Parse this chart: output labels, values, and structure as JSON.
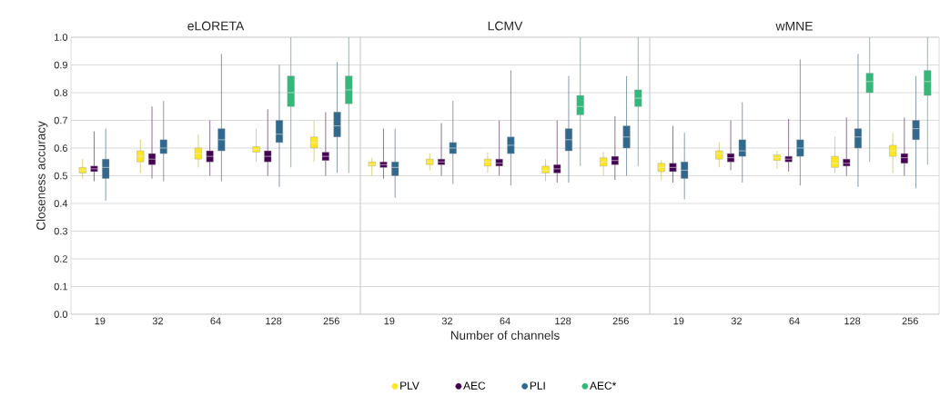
{
  "chart_data": [
    {
      "type": "box",
      "title": "eLORETA",
      "ylabel": "Closeness accuracy",
      "categories": [
        "19",
        "32",
        "64",
        "128",
        "256"
      ],
      "ylim": [
        0,
        1
      ],
      "yticks": [
        {
          "value": 0,
          "label": "0.0"
        },
        0.1,
        0.2,
        0.3,
        0.4,
        0.5,
        0.6,
        0.7,
        0.8,
        0.9,
        {
          "value": 1,
          "label": "1.0"
        }
      ],
      "grid": "y",
      "series": [
        {
          "color": "#fde725",
          "boxes": [
            {
              "low": 0.49,
              "q1": 0.51,
              "median": 0.52,
              "q3": 0.53,
              "high": 0.56
            },
            {
              "low": 0.51,
              "q1": 0.55,
              "median": 0.57,
              "q3": 0.59,
              "high": 0.63
            },
            {
              "low": 0.53,
              "q1": 0.56,
              "median": 0.58,
              "q3": 0.6,
              "high": 0.65
            },
            {
              "low": 0.55,
              "q1": 0.585,
              "median": 0.595,
              "q3": 0.605,
              "high": 0.67
            },
            {
              "low": 0.55,
              "q1": 0.6,
              "median": 0.62,
              "q3": 0.64,
              "high": 0.7
            }
          ]
        },
        {
          "color": "#440154",
          "boxes": [
            {
              "low": 0.48,
              "q1": 0.515,
              "median": 0.525,
              "q3": 0.535,
              "high": 0.66
            },
            {
              "low": 0.49,
              "q1": 0.54,
              "median": 0.56,
              "q3": 0.58,
              "high": 0.75
            },
            {
              "low": 0.5,
              "q1": 0.55,
              "median": 0.57,
              "q3": 0.59,
              "high": 0.7
            },
            {
              "low": 0.5,
              "q1": 0.55,
              "median": 0.57,
              "q3": 0.59,
              "high": 0.74
            },
            {
              "low": 0.5,
              "q1": 0.555,
              "median": 0.57,
              "q3": 0.585,
              "high": 0.73
            }
          ]
        },
        {
          "color": "#31688e",
          "boxes": [
            {
              "low": 0.41,
              "q1": 0.49,
              "median": 0.53,
              "q3": 0.56,
              "high": 0.67
            },
            {
              "low": 0.48,
              "q1": 0.58,
              "median": 0.6,
              "q3": 0.63,
              "high": 0.77
            },
            {
              "low": 0.48,
              "q1": 0.59,
              "median": 0.63,
              "q3": 0.67,
              "high": 0.94
            },
            {
              "low": 0.46,
              "q1": 0.62,
              "median": 0.65,
              "q3": 0.7,
              "high": 0.9
            },
            {
              "low": 0.51,
              "q1": 0.64,
              "median": 0.68,
              "q3": 0.73,
              "high": 0.91
            }
          ]
        },
        {
          "color": "#35b779",
          "boxes": [
            null,
            null,
            null,
            {
              "low": 0.53,
              "q1": 0.75,
              "median": 0.8,
              "q3": 0.86,
              "high": 1.0
            },
            {
              "low": 0.51,
              "q1": 0.76,
              "median": 0.81,
              "q3": 0.86,
              "high": 1.0
            }
          ]
        }
      ]
    },
    {
      "type": "box",
      "title": "LCMV",
      "xlabel": "Number of channels",
      "categories": [
        "19",
        "32",
        "64",
        "128",
        "256"
      ],
      "ylim": [
        0,
        1
      ],
      "yticks": [
        0,
        0.1,
        0.2,
        0.3,
        0.4,
        0.5,
        0.6,
        0.7,
        0.8,
        0.9,
        1
      ],
      "grid": "y",
      "tick_labels": "x",
      "legend": "bottom",
      "series": [
        {
          "name": "PLV",
          "color": "#fde725",
          "boxes": [
            {
              "low": 0.5,
              "q1": 0.535,
              "median": 0.54,
              "q3": 0.55,
              "high": 0.565
            },
            {
              "low": 0.52,
              "q1": 0.54,
              "median": 0.55,
              "q3": 0.56,
              "high": 0.58
            },
            {
              "low": 0.51,
              "q1": 0.535,
              "median": 0.55,
              "q3": 0.56,
              "high": 0.585
            },
            {
              "low": 0.48,
              "q1": 0.51,
              "median": 0.52,
              "q3": 0.535,
              "high": 0.56
            },
            {
              "low": 0.5,
              "q1": 0.535,
              "median": 0.55,
              "q3": 0.565,
              "high": 0.585
            }
          ]
        },
        {
          "name": "AEC",
          "color": "#440154",
          "boxes": [
            {
              "low": 0.49,
              "q1": 0.53,
              "median": 0.54,
              "q3": 0.55,
              "high": 0.67
            },
            {
              "low": 0.5,
              "q1": 0.54,
              "median": 0.55,
              "q3": 0.56,
              "high": 0.69
            },
            {
              "low": 0.5,
              "q1": 0.535,
              "median": 0.545,
              "q3": 0.56,
              "high": 0.7
            },
            {
              "low": 0.475,
              "q1": 0.51,
              "median": 0.525,
              "q3": 0.54,
              "high": 0.7
            },
            {
              "low": 0.485,
              "q1": 0.54,
              "median": 0.555,
              "q3": 0.57,
              "high": 0.715
            }
          ]
        },
        {
          "name": "PLI",
          "color": "#31688e",
          "boxes": [
            {
              "low": 0.42,
              "q1": 0.5,
              "median": 0.53,
              "q3": 0.55,
              "high": 0.67
            },
            {
              "low": 0.47,
              "q1": 0.58,
              "median": 0.6,
              "q3": 0.62,
              "high": 0.77
            },
            {
              "low": 0.465,
              "q1": 0.58,
              "median": 0.61,
              "q3": 0.64,
              "high": 0.88
            },
            {
              "low": 0.475,
              "q1": 0.59,
              "median": 0.63,
              "q3": 0.67,
              "high": 0.86
            },
            {
              "low": 0.5,
              "q1": 0.6,
              "median": 0.64,
              "q3": 0.68,
              "high": 0.86
            }
          ]
        },
        {
          "name": "AEC*",
          "color": "#35b779",
          "boxes": [
            null,
            null,
            null,
            {
              "low": 0.535,
              "q1": 0.72,
              "median": 0.75,
              "q3": 0.79,
              "high": 1.0
            },
            {
              "low": 0.535,
              "q1": 0.75,
              "median": 0.78,
              "q3": 0.81,
              "high": 1.0
            }
          ]
        }
      ]
    },
    {
      "type": "box",
      "title": "wMNE",
      "categories": [
        "19",
        "32",
        "64",
        "128",
        "256"
      ],
      "ylim": [
        0,
        1
      ],
      "yticks": [
        0,
        0.1,
        0.2,
        0.3,
        0.4,
        0.5,
        0.6,
        0.7,
        0.8,
        0.9,
        1
      ],
      "grid": "y",
      "tick_labels": "x",
      "series": [
        {
          "color": "#fde725",
          "boxes": [
            {
              "low": 0.485,
              "q1": 0.515,
              "median": 0.53,
              "q3": 0.545,
              "high": 0.555
            },
            {
              "low": 0.53,
              "q1": 0.56,
              "median": 0.58,
              "q3": 0.59,
              "high": 0.62
            },
            {
              "low": 0.525,
              "q1": 0.555,
              "median": 0.565,
              "q3": 0.575,
              "high": 0.59
            },
            {
              "low": 0.51,
              "q1": 0.53,
              "median": 0.545,
              "q3": 0.57,
              "high": 0.64
            },
            {
              "low": 0.51,
              "q1": 0.57,
              "median": 0.59,
              "q3": 0.61,
              "high": 0.655
            }
          ]
        },
        {
          "color": "#440154",
          "boxes": [
            {
              "low": 0.475,
              "q1": 0.515,
              "median": 0.53,
              "q3": 0.545,
              "high": 0.68
            },
            {
              "low": 0.52,
              "q1": 0.55,
              "median": 0.565,
              "q3": 0.58,
              "high": 0.7
            },
            {
              "low": 0.515,
              "q1": 0.55,
              "median": 0.56,
              "q3": 0.57,
              "high": 0.705
            },
            {
              "low": 0.5,
              "q1": 0.535,
              "median": 0.545,
              "q3": 0.56,
              "high": 0.71
            },
            {
              "low": 0.5,
              "q1": 0.545,
              "median": 0.565,
              "q3": 0.58,
              "high": 0.71
            }
          ]
        },
        {
          "color": "#31688e",
          "boxes": [
            {
              "low": 0.415,
              "q1": 0.49,
              "median": 0.52,
              "q3": 0.55,
              "high": 0.655
            },
            {
              "low": 0.475,
              "q1": 0.57,
              "median": 0.59,
              "q3": 0.63,
              "high": 0.765
            },
            {
              "low": 0.465,
              "q1": 0.57,
              "median": 0.6,
              "q3": 0.63,
              "high": 0.92
            },
            {
              "low": 0.46,
              "q1": 0.6,
              "median": 0.64,
              "q3": 0.67,
              "high": 0.94
            },
            {
              "low": 0.455,
              "q1": 0.63,
              "median": 0.67,
              "q3": 0.7,
              "high": 0.86
            }
          ]
        },
        {
          "color": "#35b779",
          "boxes": [
            null,
            null,
            null,
            {
              "low": 0.55,
              "q1": 0.8,
              "median": 0.84,
              "q3": 0.87,
              "high": 1.0
            },
            {
              "low": 0.54,
              "q1": 0.79,
              "median": 0.84,
              "q3": 0.88,
              "high": 1.0
            }
          ]
        }
      ]
    }
  ]
}
